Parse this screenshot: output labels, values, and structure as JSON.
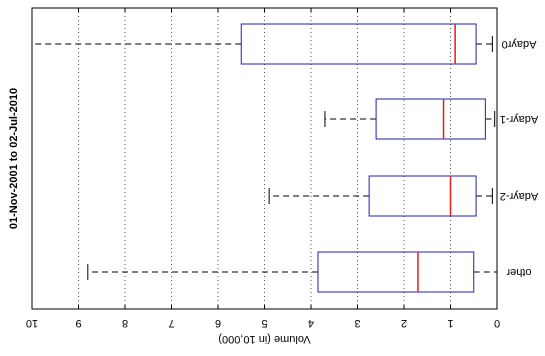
{
  "chart_data": {
    "type": "boxplot",
    "orientation": "horizontal",
    "display_rotation": "180deg",
    "title": "01-Nov-2001 to 02-Jul-2010",
    "xlabel": "Volume (in 10,000)",
    "xlim": [
      0,
      10
    ],
    "x_ticks": [
      "0",
      "1",
      "2",
      "3",
      "4",
      "5",
      "6",
      "7",
      "8",
      "9",
      "10"
    ],
    "grid": "vertical-dotted",
    "categories": [
      "other",
      "Adayr-2",
      "Adayr-1",
      "Adayr0"
    ],
    "boxes": [
      {
        "category": "other",
        "whisker_low": 0.0,
        "q1": 0.5,
        "median": 1.7,
        "q3": 3.85,
        "whisker_high": 8.8
      },
      {
        "category": "Adayr-2",
        "whisker_low": 0.1,
        "q1": 0.45,
        "median": 1.0,
        "q3": 2.75,
        "whisker_high": 4.9
      },
      {
        "category": "Adayr-1",
        "whisker_low": 0.05,
        "q1": 0.25,
        "median": 1.15,
        "q3": 2.6,
        "whisker_high": 3.7
      },
      {
        "category": "Adayr0",
        "whisker_low": 0.1,
        "q1": 0.45,
        "median": 0.9,
        "q3": 5.5,
        "whisker_high": 10.0
      }
    ],
    "colors": {
      "box": "#2020b0",
      "median": "#e02020",
      "whisker": "#000000",
      "grid": "#555555"
    }
  }
}
